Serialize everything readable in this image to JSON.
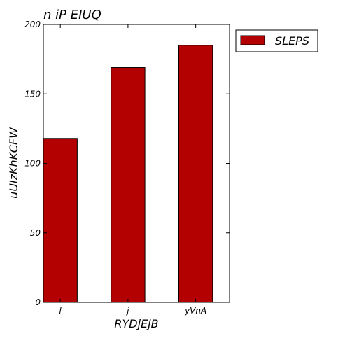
{
  "chart_data": {
    "type": "bar",
    "title": "n iP EIUQ",
    "xlabel": "RYDjEjB",
    "ylabel": "uUIzKhKCFW",
    "categories": [
      "l",
      "j",
      "yVnA"
    ],
    "series": [
      {
        "name": "SLEPS",
        "values": [
          118,
          169,
          185
        ],
        "color": "#b30000"
      }
    ],
    "ylim": [
      0,
      200
    ],
    "yticks": [
      0,
      50,
      100,
      150,
      200
    ],
    "grid": false,
    "legend": "outside-top-right"
  }
}
